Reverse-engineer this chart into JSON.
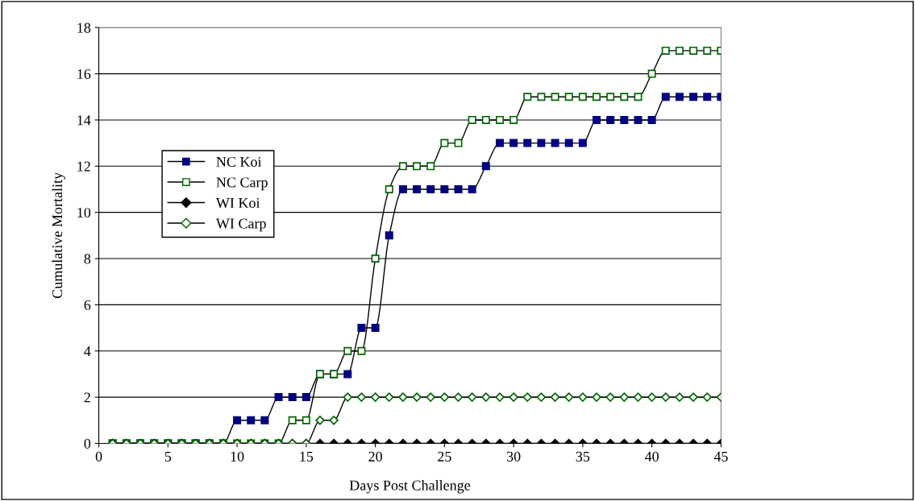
{
  "chart_data": {
    "type": "line",
    "xlabel": "Days Post Challenge",
    "ylabel": "Cumulative Mortality",
    "x": [
      1,
      2,
      3,
      4,
      5,
      6,
      7,
      8,
      9,
      10,
      11,
      12,
      13,
      14,
      15,
      16,
      17,
      18,
      19,
      20,
      21,
      22,
      23,
      24,
      25,
      26,
      27,
      28,
      29,
      30,
      31,
      32,
      33,
      34,
      35,
      36,
      37,
      38,
      39,
      40,
      41,
      42,
      43,
      44,
      45
    ],
    "series": [
      {
        "name": "NC Koi",
        "color": "#000080",
        "marker": "square",
        "values": [
          0,
          0,
          0,
          0,
          0,
          0,
          0,
          0,
          0,
          1,
          1,
          1,
          2,
          2,
          2,
          3,
          3,
          3,
          5,
          5,
          9,
          11,
          11,
          11,
          11,
          11,
          11,
          12,
          13,
          13,
          13,
          13,
          13,
          13,
          13,
          14,
          14,
          14,
          14,
          14,
          15,
          15,
          15,
          15,
          15
        ]
      },
      {
        "name": "NC Carp",
        "color": "#006400",
        "marker": "square",
        "values": [
          0,
          0,
          0,
          0,
          0,
          0,
          0,
          0,
          0,
          0,
          0,
          0,
          0,
          1,
          1,
          3,
          3,
          4,
          4,
          8,
          11,
          12,
          12,
          12,
          13,
          13,
          14,
          14,
          14,
          14,
          15,
          15,
          15,
          15,
          15,
          15,
          15,
          15,
          15,
          16,
          17,
          17,
          17,
          17,
          17
        ]
      },
      {
        "name": "WI Koi",
        "color": "#000000",
        "marker": "diamond",
        "values": [
          0,
          0,
          0,
          0,
          0,
          0,
          0,
          0,
          0,
          0,
          0,
          0,
          0,
          0,
          0,
          0,
          0,
          0,
          0,
          0,
          0,
          0,
          0,
          0,
          0,
          0,
          0,
          0,
          0,
          0,
          0,
          0,
          0,
          0,
          0,
          0,
          0,
          0,
          0,
          0,
          0,
          0,
          0,
          0,
          0
        ]
      },
      {
        "name": "WI Carp",
        "color": "#006400",
        "marker": "diamond",
        "values": [
          0,
          0,
          0,
          0,
          0,
          0,
          0,
          0,
          0,
          0,
          0,
          0,
          0,
          0,
          0,
          1,
          1,
          2,
          2,
          2,
          2,
          2,
          2,
          2,
          2,
          2,
          2,
          2,
          2,
          2,
          2,
          2,
          2,
          2,
          2,
          2,
          2,
          2,
          2,
          2,
          2,
          2,
          2,
          2,
          2
        ]
      }
    ],
    "xlim": [
      0,
      45
    ],
    "xticks": [
      0,
      5,
      10,
      15,
      20,
      25,
      30,
      35,
      40,
      45
    ],
    "ylim": [
      0,
      18
    ],
    "yticks": [
      0,
      2,
      4,
      6,
      8,
      10,
      12,
      14,
      16,
      18
    ],
    "grid": "y",
    "legend": "center left",
    "line_style": "solid"
  }
}
